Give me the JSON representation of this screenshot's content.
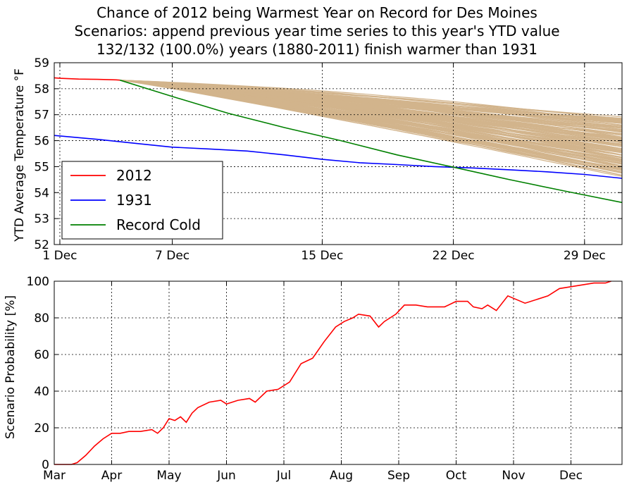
{
  "titles": [
    "Chance of 2012 being Warmest Year on Record for Des Moines",
    "Scenarios: append previous year time series to this year's YTD value",
    "132/132 (100.0%) years (1880-2011) finish warmer than 1931"
  ],
  "colors": {
    "y2012": "#ff0000",
    "y1931": "#0000ff",
    "record_cold": "#008000",
    "scenarios": "#d2b48c",
    "grid": "#000000"
  },
  "chart_data": [
    {
      "type": "line",
      "ylabel": "YTD Average Temperature °F",
      "xlabel": "",
      "ylim": [
        52,
        59
      ],
      "xlim": [
        0.7,
        31
      ],
      "grid": true,
      "legend_position": "lower-left",
      "x_ticks": [
        {
          "x": 1,
          "label": "1 Dec"
        },
        {
          "x": 7,
          "label": "7 Dec"
        },
        {
          "x": 15,
          "label": "15 Dec"
        },
        {
          "x": 22,
          "label": "22 Dec"
        },
        {
          "x": 29,
          "label": "29 Dec"
        }
      ],
      "y_ticks": [
        52,
        53,
        54,
        55,
        56,
        57,
        58,
        59
      ],
      "series": [
        {
          "name": "2012",
          "color": "#ff0000",
          "x": [
            0.7,
            1,
            2,
            3,
            4,
            4.2
          ],
          "y": [
            58.42,
            58.4,
            58.37,
            58.36,
            58.34,
            58.33
          ]
        },
        {
          "name": "1931",
          "color": "#0000ff",
          "x": [
            0.7,
            3,
            5,
            7,
            9,
            11,
            13,
            15,
            17,
            19,
            21,
            23,
            25,
            27,
            29,
            31
          ],
          "y": [
            56.2,
            56.05,
            55.9,
            55.75,
            55.68,
            55.6,
            55.45,
            55.28,
            55.15,
            55.08,
            55.0,
            54.95,
            54.88,
            54.8,
            54.7,
            54.55
          ]
        },
        {
          "name": "Record Cold",
          "color": "#008000",
          "x": [
            4.2,
            7,
            10,
            13,
            16,
            19,
            22,
            25,
            28,
            31
          ],
          "y": [
            58.33,
            57.7,
            57.05,
            56.5,
            56.0,
            55.45,
            54.98,
            54.5,
            54.05,
            53.62
          ]
        }
      ],
      "scenario_band": {
        "name": "scenarios (1880-2011)",
        "count": 132,
        "start": {
          "x": 4.2,
          "y": 58.33
        },
        "end_range": [
          54.7,
          56.9
        ]
      }
    },
    {
      "type": "line",
      "ylabel": "Scenario Probability [%]",
      "xlabel": "",
      "ylim": [
        0,
        100
      ],
      "grid": true,
      "x_ticks": [
        "Mar",
        "Apr",
        "May",
        "Jun",
        "Jul",
        "Aug",
        "Sep",
        "Oct",
        "Nov",
        "Dec"
      ],
      "y_ticks": [
        0,
        20,
        40,
        60,
        80,
        100
      ],
      "series": [
        {
          "name": "2012",
          "color": "#ff0000",
          "x": [
            0,
            0.3,
            0.4,
            0.55,
            0.7,
            0.85,
            1.0,
            1.15,
            1.3,
            1.5,
            1.7,
            1.8,
            1.9,
            2.0,
            2.1,
            2.2,
            2.3,
            2.4,
            2.5,
            2.7,
            2.9,
            3.0,
            3.2,
            3.4,
            3.5,
            3.7,
            3.9,
            4.1,
            4.3,
            4.5,
            4.7,
            4.9,
            5.05,
            5.2,
            5.3,
            5.5,
            5.65,
            5.75,
            5.85,
            5.95,
            6.1,
            6.3,
            6.5,
            6.8,
            7.0,
            7.2,
            7.3,
            7.45,
            7.55,
            7.7,
            7.9,
            8.2,
            8.6,
            8.8,
            9.0,
            9.2,
            9.4,
            9.6,
            9.7
          ],
          "y": [
            0,
            0,
            1,
            5,
            10,
            14,
            17,
            17,
            18,
            18,
            19,
            17,
            20,
            25,
            24,
            26,
            23,
            28,
            31,
            34,
            35,
            33,
            35,
            36,
            34,
            40,
            41,
            45,
            55,
            58,
            67,
            75,
            78,
            80,
            82,
            81,
            75,
            78,
            80,
            82,
            87,
            87,
            86,
            86,
            89,
            89,
            86,
            85,
            87,
            84,
            92,
            88,
            92,
            96,
            97,
            98,
            99,
            99,
            100
          ]
        }
      ]
    }
  ]
}
